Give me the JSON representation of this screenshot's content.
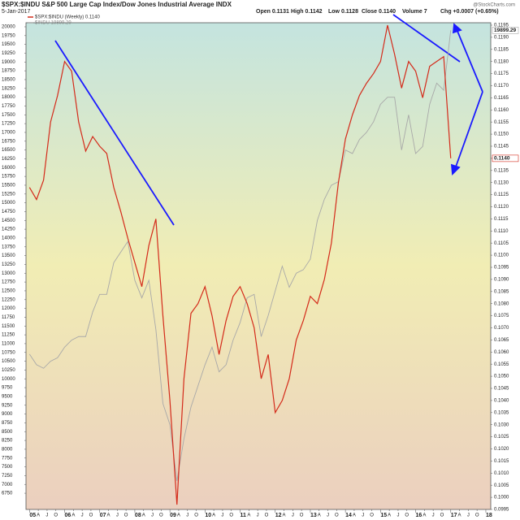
{
  "chart_data": {
    "type": "line",
    "title": "$SPX:$INDU S&P 500 Large Cap Index/Dow Jones Industrial Average INDX",
    "date": "5-Jan-2017",
    "quote": [
      "Open 0.1131",
      "High 0.1142",
      "Low 0.1128",
      "Close 0.1140",
      "Volume 7",
      "Chg +0.0007 (+0.65%)"
    ],
    "source": "@StockCharts.com",
    "x": [
      2005.0,
      2005.2,
      2005.4,
      2005.6,
      2005.8,
      2006.0,
      2006.2,
      2006.4,
      2006.6,
      2006.8,
      2007.0,
      2007.2,
      2007.4,
      2007.6,
      2007.8,
      2008.0,
      2008.2,
      2008.4,
      2008.6,
      2008.8,
      2009.0,
      2009.2,
      2009.4,
      2009.6,
      2009.8,
      2010.0,
      2010.2,
      2010.4,
      2010.6,
      2010.8,
      2011.0,
      2011.2,
      2011.4,
      2011.6,
      2011.8,
      2012.0,
      2012.2,
      2012.4,
      2012.6,
      2012.8,
      2013.0,
      2013.2,
      2013.4,
      2013.6,
      2013.8,
      2014.0,
      2014.2,
      2014.4,
      2014.6,
      2014.8,
      2015.0,
      2015.2,
      2015.4,
      2015.6,
      2015.8,
      2016.0,
      2016.2,
      2016.4,
      2016.6,
      2016.8,
      2017.0
    ],
    "series": [
      {
        "name": "$SPX:$INDU (Weekly) 0.1140",
        "color": "#d42a1a",
        "axis": "y2",
        "last_label": "0.1140",
        "values": [
          0.1128,
          0.1123,
          0.1131,
          0.1155,
          0.1166,
          0.118,
          0.1176,
          0.1155,
          0.1143,
          0.1149,
          0.1145,
          0.1142,
          0.1128,
          0.1118,
          0.1107,
          0.1097,
          0.1087,
          0.1104,
          0.1115,
          0.1075,
          0.104,
          0.0997,
          0.1049,
          0.1076,
          0.108,
          0.1087,
          0.1075,
          0.1059,
          0.1073,
          0.1083,
          0.1087,
          0.108,
          0.107,
          0.1049,
          0.1059,
          0.1035,
          0.104,
          0.1049,
          0.1065,
          0.1073,
          0.1083,
          0.108,
          0.109,
          0.1105,
          0.113,
          0.1148,
          0.1158,
          0.1166,
          0.1171,
          0.1175,
          0.118,
          0.1195,
          0.1183,
          0.1169,
          0.118,
          0.1176,
          0.1165,
          0.1178,
          0.118,
          0.1182,
          0.114
        ]
      },
      {
        "name": "$INDU 19899.29",
        "color": "#a8a8a8",
        "axis": "y",
        "last_label": "19899.29",
        "values": [
          10700,
          10400,
          10300,
          10500,
          10600,
          10900,
          11100,
          11200,
          11200,
          11900,
          12400,
          12400,
          13300,
          13600,
          13900,
          12800,
          12300,
          12800,
          11400,
          9300,
          8700,
          7100,
          8300,
          9200,
          9800,
          10400,
          10900,
          10200,
          10400,
          11100,
          11600,
          12300,
          12400,
          11200,
          11800,
          12500,
          13200,
          12600,
          13000,
          13100,
          13400,
          14500,
          15100,
          15500,
          15600,
          16500,
          16400,
          16800,
          17000,
          17300,
          17800,
          18000,
          18000,
          16500,
          17500,
          16400,
          16600,
          17800,
          18400,
          18200,
          19899.29
        ]
      }
    ],
    "xlim": [
      2004.9,
      2018.14
    ],
    "ylim": [
      6290,
      20115
    ],
    "y2lim": [
      0.0995,
      0.1196
    ],
    "yticks": [
      6750,
      7000,
      7250,
      7500,
      7750,
      8000,
      8250,
      8500,
      8750,
      9000,
      9250,
      9500,
      9750,
      10000,
      10250,
      10500,
      10750,
      11000,
      11250,
      11500,
      11750,
      12000,
      12250,
      12500,
      12750,
      13000,
      13250,
      13500,
      13750,
      14000,
      14250,
      14500,
      14750,
      15000,
      15250,
      15500,
      15750,
      16000,
      16250,
      16500,
      16750,
      17000,
      17250,
      17500,
      17750,
      18000,
      18250,
      18500,
      18750,
      19000,
      19250,
      19500,
      19750,
      20000
    ],
    "y2ticks": [
      {
        "value": 0.0995,
        "label": "0.0995"
      },
      {
        "value": 0.1,
        "label": "0.1000"
      },
      {
        "value": 0.1005,
        "label": "0.1005"
      },
      {
        "value": 0.101,
        "label": "0.1010"
      },
      {
        "value": 0.1015,
        "label": "0.1015"
      },
      {
        "value": 0.102,
        "label": "0.1020"
      },
      {
        "value": 0.1025,
        "label": "0.1025"
      },
      {
        "value": 0.103,
        "label": "0.1030"
      },
      {
        "value": 0.1035,
        "label": "0.1035"
      },
      {
        "value": 0.104,
        "label": "0.1040"
      },
      {
        "value": 0.1045,
        "label": "0.1045"
      },
      {
        "value": 0.105,
        "label": "0.1050"
      },
      {
        "value": 0.1055,
        "label": "0.1055"
      },
      {
        "value": 0.106,
        "label": "0.1060"
      },
      {
        "value": 0.1065,
        "label": "0.1065"
      },
      {
        "value": 0.107,
        "label": "0.1070"
      },
      {
        "value": 0.1075,
        "label": "0.1075"
      },
      {
        "value": 0.108,
        "label": "0.1080"
      },
      {
        "value": 0.1085,
        "label": "0.1085"
      },
      {
        "value": 0.109,
        "label": "0.1090"
      },
      {
        "value": 0.1095,
        "label": "0.1095"
      },
      {
        "value": 0.11,
        "label": "0.1100"
      },
      {
        "value": 0.1105,
        "label": "0.1105"
      },
      {
        "value": 0.111,
        "label": "0.1110"
      },
      {
        "value": 0.1115,
        "label": "0.1115"
      },
      {
        "value": 0.112,
        "label": "0.1120"
      },
      {
        "value": 0.1125,
        "label": "0.1125"
      },
      {
        "value": 0.113,
        "label": "0.1130"
      },
      {
        "value": 0.1135,
        "label": "0.1135"
      },
      {
        "value": 0.114,
        "label": "0.1140"
      },
      {
        "value": 0.1145,
        "label": "0.1145"
      },
      {
        "value": 0.115,
        "label": "0.1150"
      },
      {
        "value": 0.1155,
        "label": "0.1155"
      },
      {
        "value": 0.116,
        "label": "0.1160"
      },
      {
        "value": 0.1165,
        "label": "0.1165"
      },
      {
        "value": 0.117,
        "label": "0.1170"
      },
      {
        "value": 0.1175,
        "label": "0.1175"
      },
      {
        "value": 0.118,
        "label": "0.1180"
      },
      {
        "value": 0.1185,
        "label": "0.1185"
      },
      {
        "value": 0.119,
        "label": "0.1190"
      },
      {
        "value": 0.1195,
        "label": "0.1195"
      }
    ],
    "xticks": [
      {
        "value": 2005,
        "label": "05"
      },
      {
        "value": 2005.25,
        "label": "A"
      },
      {
        "value": 2005.5,
        "label": "J"
      },
      {
        "value": 2005.75,
        "label": "O"
      },
      {
        "value": 2006,
        "label": "06"
      },
      {
        "value": 2006.25,
        "label": "A"
      },
      {
        "value": 2006.5,
        "label": "J"
      },
      {
        "value": 2006.75,
        "label": "O"
      },
      {
        "value": 2007,
        "label": "07"
      },
      {
        "value": 2007.25,
        "label": "A"
      },
      {
        "value": 2007.5,
        "label": "J"
      },
      {
        "value": 2007.75,
        "label": "O"
      },
      {
        "value": 2008,
        "label": "08"
      },
      {
        "value": 2008.25,
        "label": "A"
      },
      {
        "value": 2008.5,
        "label": "J"
      },
      {
        "value": 2008.75,
        "label": "O"
      },
      {
        "value": 2009,
        "label": "09"
      },
      {
        "value": 2009.25,
        "label": "A"
      },
      {
        "value": 2009.5,
        "label": "J"
      },
      {
        "value": 2009.75,
        "label": "O"
      },
      {
        "value": 2010,
        "label": "10"
      },
      {
        "value": 2010.25,
        "label": "A"
      },
      {
        "value": 2010.5,
        "label": "J"
      },
      {
        "value": 2010.75,
        "label": "O"
      },
      {
        "value": 2011,
        "label": "11"
      },
      {
        "value": 2011.25,
        "label": "A"
      },
      {
        "value": 2011.5,
        "label": "J"
      },
      {
        "value": 2011.75,
        "label": "O"
      },
      {
        "value": 2012,
        "label": "12"
      },
      {
        "value": 2012.25,
        "label": "A"
      },
      {
        "value": 2012.5,
        "label": "J"
      },
      {
        "value": 2012.75,
        "label": "O"
      },
      {
        "value": 2013,
        "label": "13"
      },
      {
        "value": 2013.25,
        "label": "A"
      },
      {
        "value": 2013.5,
        "label": "J"
      },
      {
        "value": 2013.75,
        "label": "O"
      },
      {
        "value": 2014,
        "label": "14"
      },
      {
        "value": 2014.25,
        "label": "A"
      },
      {
        "value": 2014.5,
        "label": "J"
      },
      {
        "value": 2014.75,
        "label": "O"
      },
      {
        "value": 2015,
        "label": "15"
      },
      {
        "value": 2015.25,
        "label": "A"
      },
      {
        "value": 2015.5,
        "label": "J"
      },
      {
        "value": 2015.75,
        "label": "O"
      },
      {
        "value": 2016,
        "label": "16"
      },
      {
        "value": 2016.25,
        "label": "A"
      },
      {
        "value": 2016.5,
        "label": "J"
      },
      {
        "value": 2016.75,
        "label": "O"
      },
      {
        "value": 2017,
        "label": "17"
      },
      {
        "value": 2017.25,
        "label": "A"
      },
      {
        "value": 2017.5,
        "label": "J"
      },
      {
        "value": 2017.75,
        "label": "O"
      },
      {
        "value": 2018,
        "label": "18"
      }
    ],
    "grid": false
  }
}
